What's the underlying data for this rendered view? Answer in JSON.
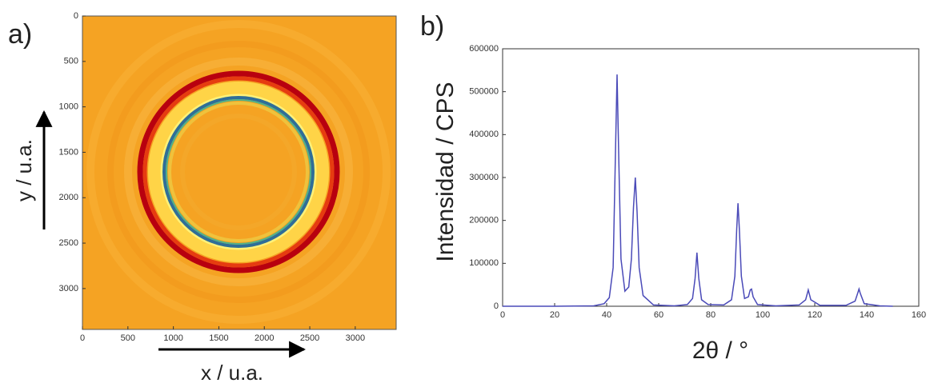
{
  "chart_data": [
    {
      "type": "image",
      "panel_label": "a)",
      "xlabel": "x / u.a.",
      "ylabel": "y / u.a.",
      "xlim": [
        0,
        3450
      ],
      "ylim": [
        3450,
        0
      ],
      "xticks": [
        0,
        500,
        1000,
        1500,
        2000,
        2500,
        3000
      ],
      "yticks": [
        0,
        500,
        1000,
        1500,
        2000,
        2500,
        3000
      ]
    },
    {
      "type": "line",
      "panel_label": "b)",
      "xlabel": "2θ / °",
      "ylabel": "Intensidad / CPS",
      "xlim": [
        0,
        160
      ],
      "ylim": [
        0,
        600000
      ],
      "xticks": [
        0,
        20,
        40,
        60,
        80,
        100,
        120,
        140,
        160
      ],
      "yticks": [
        0,
        100000,
        200000,
        300000,
        400000,
        500000,
        600000
      ],
      "color": "#4a4ab8",
      "x": [
        0,
        20,
        35,
        39,
        41,
        42.5,
        43.3,
        44,
        44.7,
        45.5,
        47,
        48.5,
        49.5,
        50.3,
        51,
        51.7,
        52.5,
        54,
        58,
        66,
        71,
        73,
        74,
        74.7,
        75.4,
        76.5,
        79,
        85,
        88,
        89.3,
        90,
        90.5,
        91,
        91.8,
        93,
        94.5,
        95.2,
        95.7,
        96.3,
        98,
        105,
        114,
        116.5,
        117.5,
        118.5,
        122,
        132,
        135.5,
        136.5,
        137,
        137.5,
        139,
        145,
        150
      ],
      "values": [
        0,
        0,
        1000,
        6000,
        20000,
        90000,
        330000,
        540000,
        330000,
        110000,
        35000,
        45000,
        110000,
        230000,
        300000,
        220000,
        90000,
        25000,
        3000,
        1000,
        4000,
        18000,
        65000,
        125000,
        65000,
        15000,
        4000,
        3000,
        15000,
        70000,
        180000,
        240000,
        180000,
        70000,
        18000,
        22000,
        38000,
        40000,
        22000,
        4000,
        1000,
        3000,
        15000,
        38000,
        15000,
        2000,
        2000,
        12000,
        30000,
        40000,
        30000,
        6000,
        1000,
        0
      ]
    }
  ]
}
